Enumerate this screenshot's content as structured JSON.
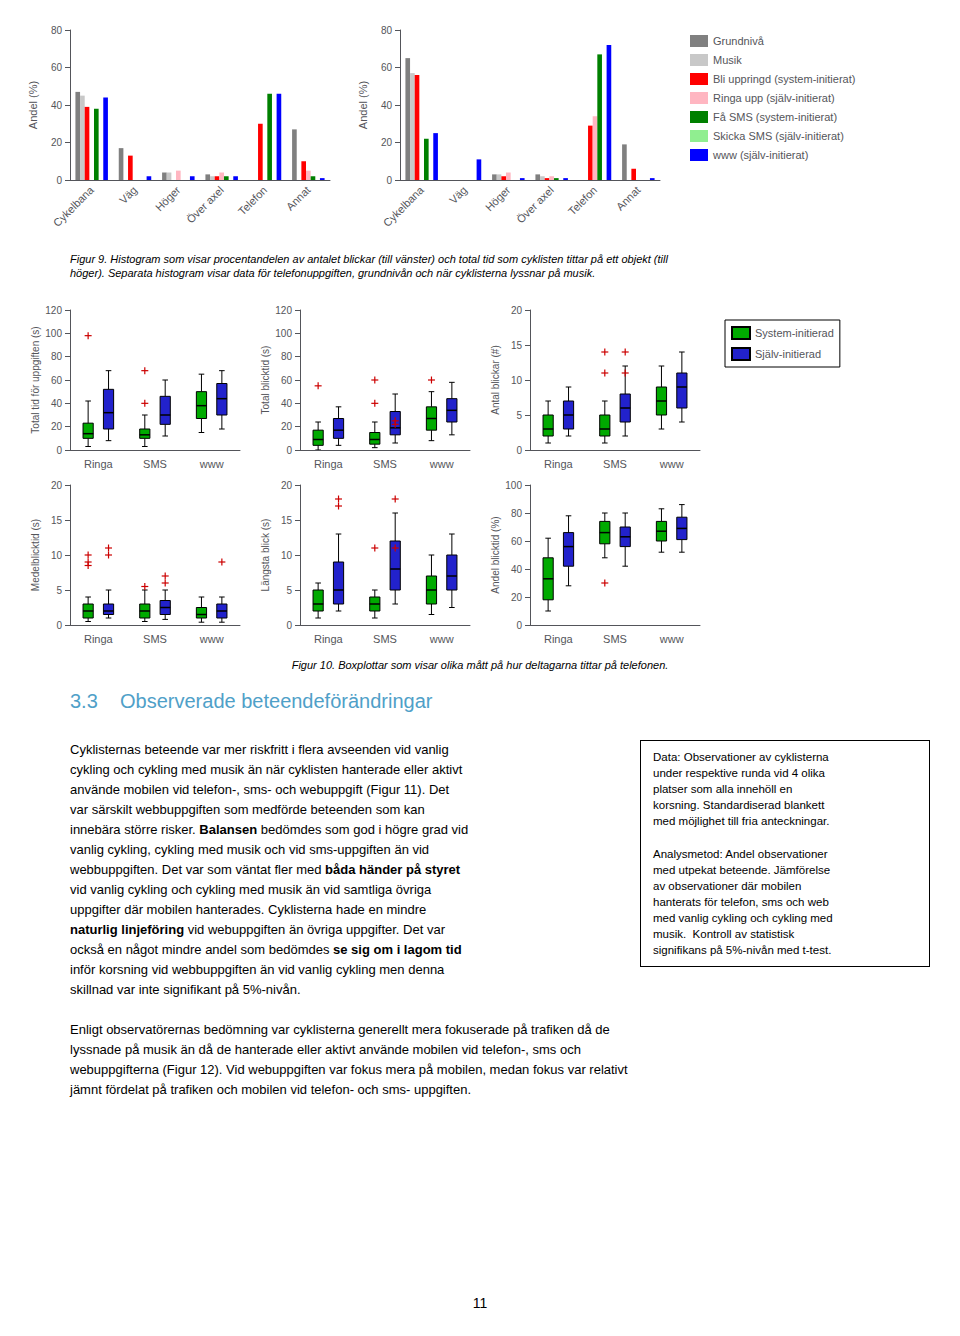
{
  "chart_data": [
    {
      "type": "bar",
      "ylabel": "Andel (%)",
      "categories": [
        "Cykelbana",
        "Väg",
        "Höger",
        "Över axel",
        "Telefon",
        "Annat"
      ],
      "series": [
        {
          "name": "Grundnivå",
          "color": "#808080",
          "values": [
            47,
            17,
            4,
            3,
            0,
            27
          ]
        },
        {
          "name": "Musik",
          "color": "#c8c8c8",
          "values": [
            45,
            0,
            4,
            2,
            0,
            0
          ]
        },
        {
          "name": "Bli uppringd (system-initierat)",
          "color": "#ff0000",
          "values": [
            39,
            13,
            0,
            2,
            30,
            10
          ]
        },
        {
          "name": "Ringa upp (själv-initierat)",
          "color": "#ffb6c1",
          "values": [
            0,
            0,
            5,
            4,
            0,
            5
          ]
        },
        {
          "name": "Få SMS (system-initierat)",
          "color": "#008000",
          "values": [
            38,
            0,
            0,
            2,
            46,
            2
          ]
        },
        {
          "name": "Skicka SMS (själv-initierat)",
          "color": "#90ee90",
          "values": [
            0,
            0,
            0,
            0,
            0,
            0
          ]
        },
        {
          "name": "www (själv-initierat)",
          "color": "#0000ff",
          "values": [
            44,
            2,
            2,
            2,
            46,
            1
          ]
        }
      ],
      "ylim": [
        0,
        80
      ],
      "yticks": [
        0,
        20,
        40,
        60,
        80
      ],
      "grid": false
    },
    {
      "type": "bar",
      "ylabel": "Andel (%)",
      "categories": [
        "Cykelbana",
        "Väg",
        "Höger",
        "Över axel",
        "Telefon",
        "Annat"
      ],
      "series": [
        {
          "name": "Grundnivå",
          "color": "#808080",
          "values": [
            65,
            0,
            3,
            3,
            0,
            19
          ]
        },
        {
          "name": "Musik",
          "color": "#c8c8c8",
          "values": [
            57,
            0,
            3,
            2,
            0,
            0
          ]
        },
        {
          "name": "Bli uppringd (system-initierat)",
          "color": "#ff0000",
          "values": [
            56,
            0,
            2,
            1,
            29,
            6
          ]
        },
        {
          "name": "Ringa upp (själv-initierat)",
          "color": "#ffb6c1",
          "values": [
            0,
            0,
            4,
            2,
            34,
            0
          ]
        },
        {
          "name": "Få SMS (system-initierat)",
          "color": "#008000",
          "values": [
            22,
            0,
            0,
            1,
            67,
            0
          ]
        },
        {
          "name": "Skicka SMS (själv-initierat)",
          "color": "#90ee90",
          "values": [
            0,
            0,
            0,
            0,
            0,
            0
          ]
        },
        {
          "name": "www (själv-initierat)",
          "color": "#0000ff",
          "values": [
            25,
            11,
            1,
            1,
            72,
            1
          ]
        }
      ],
      "ylim": [
        0,
        80
      ],
      "yticks": [
        0,
        20,
        40,
        60,
        80
      ],
      "grid": false,
      "legend": "right"
    },
    {
      "type": "boxplot",
      "ylabel": "Total tid för uppgiften (s)",
      "categories": [
        "Ringa",
        "SMS",
        "www"
      ],
      "series": [
        {
          "name": "System-initierad",
          "color": "#00aa00",
          "values": [
            [
              3,
              10,
              14,
              23,
              42
            ],
            [
              3,
              10,
              13,
              18,
              30
            ],
            [
              15,
              27,
              38,
              50,
              65
            ]
          ],
          "outliers": [
            [
              98
            ],
            [
              40,
              68
            ],
            []
          ]
        },
        {
          "name": "Själv-initierad",
          "color": "#2222cc",
          "values": [
            [
              8,
              18,
              32,
              52,
              68
            ],
            [
              12,
              22,
              30,
              46,
              60
            ],
            [
              18,
              30,
              44,
              57,
              68
            ]
          ],
          "outliers": [
            [],
            [],
            []
          ]
        }
      ],
      "outlier_color": "#cc0000",
      "ylim": [
        0,
        120
      ],
      "yticks": [
        0,
        20,
        40,
        60,
        80,
        100,
        120
      ],
      "grid": false
    },
    {
      "type": "boxplot",
      "ylabel": "Total blicktid (s)",
      "categories": [
        "Ringa",
        "SMS",
        "www"
      ],
      "series": [
        {
          "name": "System-initierad",
          "color": "#00aa00",
          "values": [
            [
              0,
              4,
              9,
              17,
              24
            ],
            [
              2,
              5,
              9,
              15,
              24
            ],
            [
              8,
              17,
              27,
              37,
              50
            ]
          ],
          "outliers": [
            [
              55
            ],
            [
              60,
              40
            ],
            [
              60
            ]
          ]
        },
        {
          "name": "Själv-initierad",
          "color": "#2222cc",
          "values": [
            [
              4,
              10,
              17,
              27,
              37
            ],
            [
              6,
              13,
              19,
              33,
              48
            ],
            [
              13,
              24,
              34,
              44,
              58
            ]
          ],
          "outliers": [
            [],
            [
              25,
              22
            ],
            []
          ]
        }
      ],
      "outlier_color": "#cc0000",
      "ylim": [
        0,
        120
      ],
      "yticks": [
        0,
        20,
        40,
        60,
        80,
        100,
        120
      ],
      "grid": false
    },
    {
      "type": "boxplot",
      "ylabel": "Antal blickar (#)",
      "categories": [
        "Ringa",
        "SMS",
        "www"
      ],
      "series": [
        {
          "name": "System-initierad",
          "color": "#00aa00",
          "values": [
            [
              1,
              2,
              3,
              5,
              7
            ],
            [
              1,
              2,
              3,
              5,
              7
            ],
            [
              3,
              5,
              7,
              9,
              12
            ]
          ],
          "outliers": [
            [],
            [
              14,
              11
            ],
            []
          ]
        },
        {
          "name": "Själv-initierad",
          "color": "#2222cc",
          "values": [
            [
              2,
              3,
              5,
              7,
              9
            ],
            [
              2,
              4,
              6,
              8,
              12
            ],
            [
              4,
              6,
              9,
              11,
              14
            ]
          ],
          "outliers": [
            [],
            [
              14,
              11
            ],
            []
          ]
        }
      ],
      "outlier_color": "#cc0000",
      "ylim": [
        0,
        20
      ],
      "yticks": [
        0,
        5,
        10,
        15,
        20
      ],
      "grid": false,
      "legend": "right"
    },
    {
      "type": "boxplot",
      "ylabel": "Medelblicktid (s)",
      "categories": [
        "Ringa",
        "SMS",
        "www"
      ],
      "series": [
        {
          "name": "System-initierad",
          "color": "#00aa00",
          "values": [
            [
              0.5,
              1,
              2,
              3,
              4
            ],
            [
              0.5,
              1,
              2,
              3,
              5
            ],
            [
              0.4,
              1,
              1.5,
              2.5,
              4
            ]
          ],
          "outliers": [
            [
              10,
              8.5,
              9
            ],
            [
              5.5
            ],
            []
          ]
        },
        {
          "name": "Själv-initierad",
          "color": "#2222cc",
          "values": [
            [
              1,
              1.5,
              2,
              3,
              5
            ],
            [
              0.8,
              1.5,
              2.5,
              3.5,
              5
            ],
            [
              0.4,
              1,
              2,
              3,
              4
            ]
          ],
          "outliers": [
            [
              10,
              11
            ],
            [
              7,
              6
            ],
            [
              9
            ]
          ]
        }
      ],
      "outlier_color": "#cc0000",
      "ylim": [
        0,
        20
      ],
      "yticks": [
        0,
        5,
        10,
        15,
        20
      ],
      "grid": false
    },
    {
      "type": "boxplot",
      "ylabel": "Längsta blick (s)",
      "categories": [
        "Ringa",
        "SMS",
        "www"
      ],
      "series": [
        {
          "name": "System-initierad",
          "color": "#00aa00",
          "values": [
            [
              1,
              2,
              3,
              5,
              6
            ],
            [
              1,
              2,
              3,
              4,
              5
            ],
            [
              1.5,
              3,
              5,
              7,
              10
            ]
          ],
          "outliers": [
            [],
            [
              11
            ],
            []
          ]
        },
        {
          "name": "Själv-initierad",
          "color": "#2222cc",
          "values": [
            [
              2,
              3,
              5,
              9,
              13
            ],
            [
              3,
              5,
              8,
              12,
              16
            ],
            [
              2.5,
              5,
              7,
              10,
              13
            ]
          ],
          "outliers": [
            [
              18,
              17
            ],
            [
              18,
              11
            ],
            []
          ]
        }
      ],
      "outlier_color": "#cc0000",
      "ylim": [
        0,
        20
      ],
      "yticks": [
        0,
        5,
        10,
        15,
        20
      ],
      "grid": false
    },
    {
      "type": "boxplot",
      "ylabel": "Andel blicktid (%)",
      "categories": [
        "Ringa",
        "SMS",
        "www"
      ],
      "series": [
        {
          "name": "System-initierad",
          "color": "#00aa00",
          "values": [
            [
              10,
              18,
              33,
              48,
              62
            ],
            [
              48,
              58,
              66,
              74,
              80
            ],
            [
              52,
              60,
              67,
              74,
              83
            ]
          ],
          "outliers": [
            [],
            [
              30
            ],
            []
          ]
        },
        {
          "name": "Själv-initierad",
          "color": "#2222cc",
          "values": [
            [
              28,
              42,
              56,
              66,
              78
            ],
            [
              42,
              56,
              63,
              70,
              80
            ],
            [
              52,
              61,
              69,
              77,
              86
            ]
          ],
          "outliers": [
            [],
            [],
            []
          ]
        }
      ],
      "outlier_color": "#cc0000",
      "ylim": [
        0,
        100
      ],
      "yticks": [
        0,
        20,
        40,
        60,
        80,
        100
      ],
      "grid": false
    }
  ],
  "page": {
    "caption_1": [
      "Figur 9. Histogram som visar procentandelen av antalet blickar (till vänster) och total tid som cyklisten tittar på ett objekt (till",
      "höger). Separata histogram visar data för telefonuppgiften, grundnivån och när cyklisterna lyssnar på musik."
    ],
    "caption_2": "Figur 10. Boxplottar som visar olika mått på hur deltagarna tittar på telefonen.",
    "heading": "3.3    Observerade beteendeförändringar",
    "heading_color": "#4fa0c8",
    "sidebar": "Data: Observationer av cyklisterna\nunder respektive runda vid 4 olika\nplatser som alla innehöll en\nkorsning. Standardiserad blankett\nmed möjlighet till fria anteckningar.\n\nAnalysmetod: Andel observationer\nmed utpekat beteende. Jämförelse\nav observationer där mobilen\nhanterats för telefon, sms och web\nmed vanlig cykling och cykling med\nmusik.  Kontroll av statistisk\nsignifikans på 5%-nivån med t-test.",
    "paragraph_1": [
      [
        {
          "text": "Cyklisternas beteende var mer riskfritt i flera avseenden vid vanlig",
          "bold": false
        }
      ],
      [
        {
          "text": "cykling och cykling med musik än när cyklisten hanterade eller aktivt",
          "bold": false
        }
      ],
      [
        {
          "text": "använde mobilen vid telefon-, sms- och webuppgift (Figur 11). Det",
          "bold": false
        }
      ],
      [
        {
          "text": "var särskilt webbuppgiften som medförde beteenden som kan",
          "bold": false
        }
      ],
      [
        {
          "text": "innebära större risker. ",
          "bold": false
        },
        {
          "text": "Balansen",
          "bold": true
        },
        {
          "text": " bedömdes som god i högre grad vid",
          "bold": false
        }
      ],
      [
        {
          "text": "vanlig cykling, cykling med musik och vid sms-uppgiften än vid",
          "bold": false
        }
      ],
      [
        {
          "text": "webbuppgiften. Det var som väntat fler med ",
          "bold": false
        },
        {
          "text": "båda händer på styret",
          "bold": true
        }
      ],
      [
        {
          "text": "vid vanlig cykling och cykling med musik än vid samtliga övriga",
          "bold": false
        }
      ],
      [
        {
          "text": "uppgifter där mobilen hanterades. Cyklisterna hade en mindre",
          "bold": false
        }
      ],
      [
        {
          "text": "naturlig linjeföring",
          "bold": true
        },
        {
          "text": " vid webuppgiften än övriga uppgifter. Det var",
          "bold": false
        }
      ],
      [
        {
          "text": "också en något mindre andel som bedömdes ",
          "bold": false
        },
        {
          "text": "se sig om i lagom tid",
          "bold": true
        }
      ],
      [
        {
          "text": "inför korsning vid webbuppgiften än vid vanlig cykling men denna",
          "bold": false
        }
      ],
      [
        {
          "text": "skillnad var inte signifikant på 5%-nivån.",
          "bold": false
        }
      ]
    ],
    "paragraph_2": [
      "Enligt observatörernas bedömning var cyklisterna generellt mera fokuserade på trafiken då de",
      "lyssnade på musik än då de hanterade eller aktivt använde mobilen vid telefon-, sms och",
      "webuppgifterna (Figur 12). Vid webuppgiften var fokus mera på mobilen, medan fokus var relativt",
      "jämnt fördelat på trafiken och mobilen vid telefon- och sms- uppgiften."
    ],
    "page_number": "11"
  }
}
